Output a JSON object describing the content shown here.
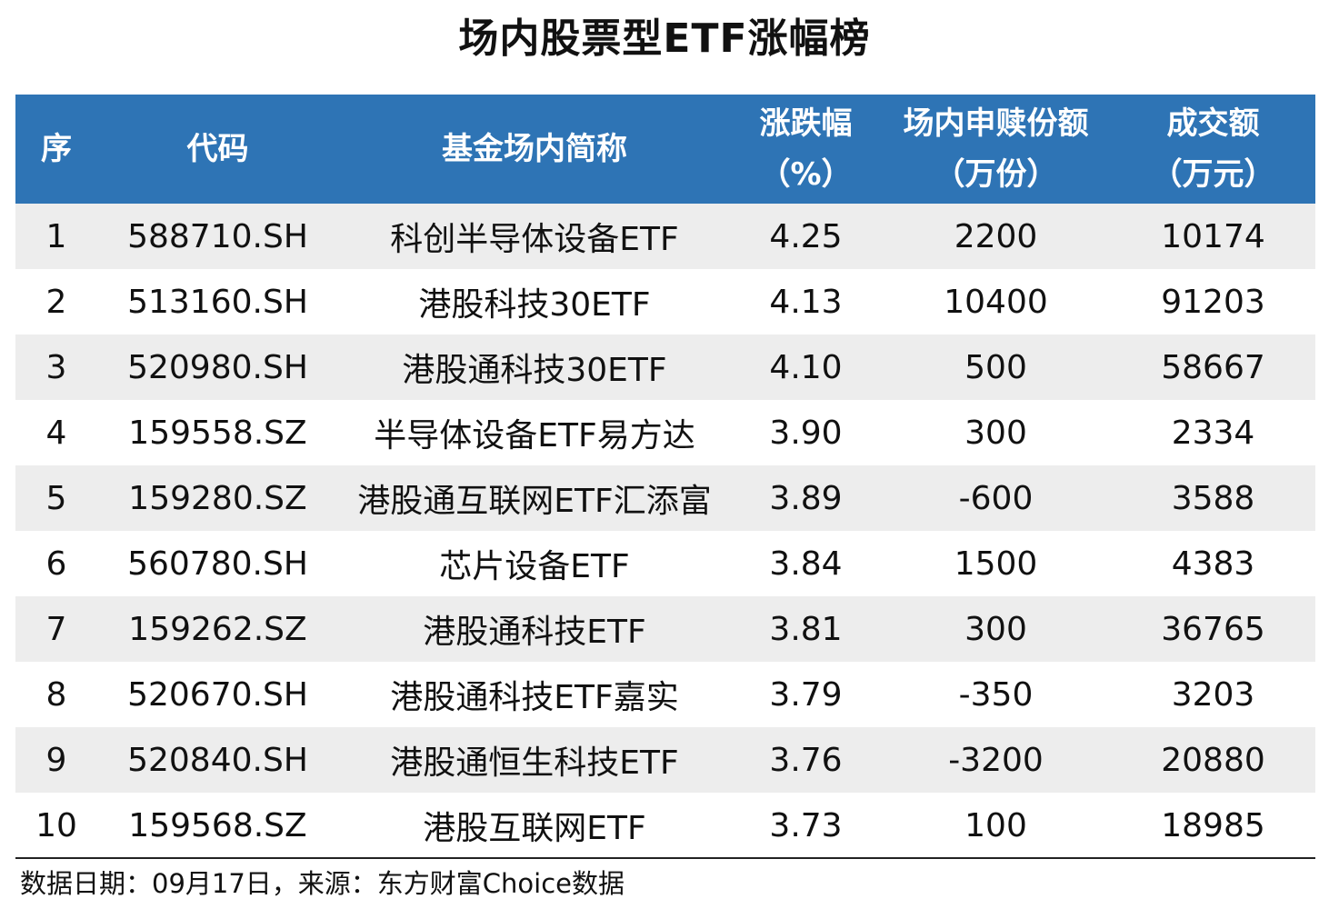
{
  "title": "场内股票型ETF涨幅榜",
  "header": {
    "rank": "序",
    "code": "代码",
    "name": "基金场内简称",
    "change_line1": "涨跌幅",
    "change_line2": "（%）",
    "subscription_line1": "场内申赎份额",
    "subscription_line2": "（万份）",
    "turnover_line1": "成交额",
    "turnover_line2": "（万元）"
  },
  "rows": [
    {
      "rank": "1",
      "code": "588710.SH",
      "name": "科创半导体设备ETF",
      "change": "4.25",
      "subscription": "2200",
      "turnover": "10174"
    },
    {
      "rank": "2",
      "code": "513160.SH",
      "name": "港股科技30ETF",
      "change": "4.13",
      "subscription": "10400",
      "turnover": "91203"
    },
    {
      "rank": "3",
      "code": "520980.SH",
      "name": "港股通科技30ETF",
      "change": "4.10",
      "subscription": "500",
      "turnover": "58667"
    },
    {
      "rank": "4",
      "code": "159558.SZ",
      "name": "半导体设备ETF易方达",
      "change": "3.90",
      "subscription": "300",
      "turnover": "2334"
    },
    {
      "rank": "5",
      "code": "159280.SZ",
      "name": "港股通互联网ETF汇添富",
      "change": "3.89",
      "subscription": "-600",
      "turnover": "3588"
    },
    {
      "rank": "6",
      "code": "560780.SH",
      "name": "芯片设备ETF",
      "change": "3.84",
      "subscription": "1500",
      "turnover": "4383"
    },
    {
      "rank": "7",
      "code": "159262.SZ",
      "name": "港股通科技ETF",
      "change": "3.81",
      "subscription": "300",
      "turnover": "36765"
    },
    {
      "rank": "8",
      "code": "520670.SH",
      "name": "港股通科技ETF嘉实",
      "change": "3.79",
      "subscription": "-350",
      "turnover": "3203"
    },
    {
      "rank": "9",
      "code": "520840.SH",
      "name": "港股通恒生科技ETF",
      "change": "3.76",
      "subscription": "-3200",
      "turnover": "20880"
    },
    {
      "rank": "10",
      "code": "159568.SZ",
      "name": "港股互联网ETF",
      "change": "3.73",
      "subscription": "100",
      "turnover": "18985"
    }
  ],
  "source": "数据日期：09月17日，来源：东方财富Choice数据",
  "colors": {
    "header_bg": "#2e74b5",
    "header_text": "#ffffff",
    "stripe_bg": "#ededed"
  }
}
